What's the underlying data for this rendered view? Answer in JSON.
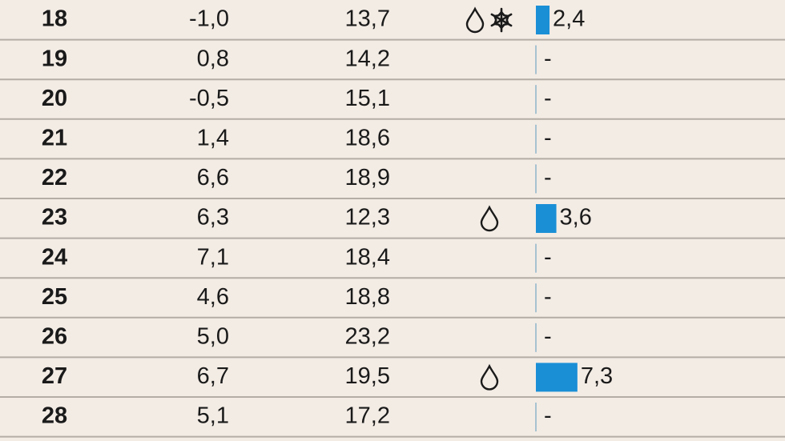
{
  "table": {
    "rows": [
      {
        "day": "18",
        "min": "-1,0",
        "max": "13,7",
        "icons": [
          "rain",
          "snow"
        ],
        "precip": {
          "value": 2.4,
          "label": "2,4"
        }
      },
      {
        "day": "19",
        "min": "0,8",
        "max": "14,2",
        "icons": [],
        "precip": "-"
      },
      {
        "day": "20",
        "min": "-0,5",
        "max": "15,1",
        "icons": [],
        "precip": "-"
      },
      {
        "day": "21",
        "min": "1,4",
        "max": "18,6",
        "icons": [],
        "precip": "-"
      },
      {
        "day": "22",
        "min": "6,6",
        "max": "18,9",
        "icons": [],
        "precip": "-"
      },
      {
        "day": "23",
        "min": "6,3",
        "max": "12,3",
        "icons": [
          "rain"
        ],
        "precip": {
          "value": 3.6,
          "label": "3,6"
        }
      },
      {
        "day": "24",
        "min": "7,1",
        "max": "18,4",
        "icons": [],
        "precip": "-"
      },
      {
        "day": "25",
        "min": "4,6",
        "max": "18,8",
        "icons": [],
        "precip": "-"
      },
      {
        "day": "26",
        "min": "5,0",
        "max": "23,2",
        "icons": [],
        "precip": "-"
      },
      {
        "day": "27",
        "min": "6,7",
        "max": "19,5",
        "icons": [
          "rain"
        ],
        "precip": {
          "value": 7.3,
          "label": "7,3"
        }
      },
      {
        "day": "28",
        "min": "5,1",
        "max": "17,2",
        "icons": [],
        "precip": "-"
      }
    ],
    "bar_color": "#1a8fd6"
  }
}
